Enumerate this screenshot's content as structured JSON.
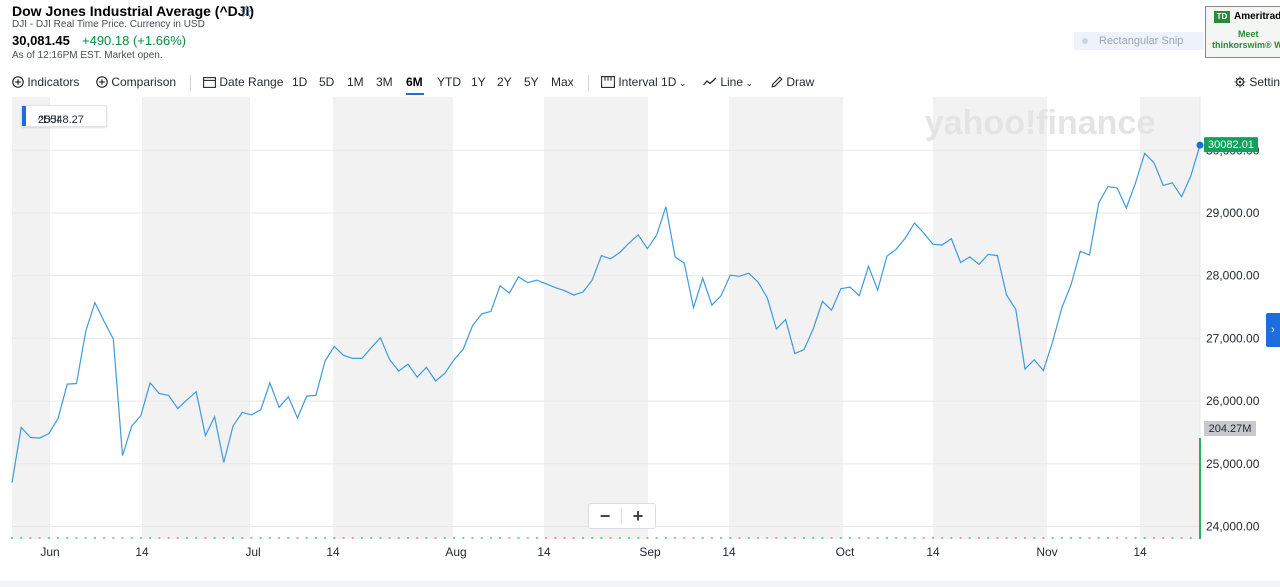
{
  "header": {
    "title": "Dow Jones Industrial Average (^DJI)",
    "subtitle": "DJI - DJI Real Time Price. Currency in USD",
    "price": "30,081.45",
    "change": "+490.18 (+1.66%)",
    "as_of": "As of 12:16PM EST. Market open.",
    "star_icon": "star-outline-icon"
  },
  "snip": {
    "label": "Rectangular Snip"
  },
  "ad": {
    "logo": "TD",
    "brand": "Ameritrade",
    "line1": "Meet",
    "line2": "thinkorswim® W"
  },
  "toolbar": {
    "indicators": "Indicators",
    "comparison": "Comparison",
    "date_range": "Date Range",
    "ranges": [
      "1D",
      "5D",
      "1M",
      "3M",
      "6M",
      "YTD",
      "1Y",
      "2Y",
      "5Y",
      "Max"
    ],
    "selected_range": "6M",
    "interval": "Interval",
    "interval_value": "1D",
    "line": "Line",
    "draw": "Draw",
    "settings": "Settings"
  },
  "tooltip": {
    "symbol": "^DJI",
    "value": "25548.27"
  },
  "zoom": {
    "minus": "−",
    "plus": "+"
  },
  "colors": {
    "line": "#3d9be0",
    "up": "#12a05c",
    "band": "#f2f2f2",
    "accent": "#1d6ce0",
    "volume_up": "#27b15e",
    "volume_down": "#e46060"
  },
  "chart_data": {
    "type": "line",
    "series": [
      {
        "name": "^DJI"
      }
    ],
    "x_labels": [
      "Jun",
      "14",
      "Jul",
      "14",
      "Aug",
      "14",
      "Sep",
      "14",
      "Oct",
      "14",
      "Nov",
      "14"
    ],
    "y_ticks": [
      "24,000.00",
      "25,000.00",
      "26,000.00",
      "27,000.00",
      "28,000.00",
      "29,000.00",
      "30,000.00"
    ],
    "ylim": [
      23800,
      30850
    ],
    "values": [
      24700,
      25580,
      25420,
      25410,
      25480,
      25720,
      26270,
      26280,
      27110,
      27570,
      27270,
      26990,
      25130,
      25600,
      25770,
      26290,
      26120,
      26090,
      25880,
      26020,
      26150,
      25450,
      25750,
      25020,
      25600,
      25820,
      25780,
      25860,
      26290,
      25900,
      26070,
      25730,
      26080,
      26090,
      26640,
      26870,
      26730,
      26680,
      26680,
      26850,
      27010,
      26660,
      26480,
      26590,
      26380,
      26540,
      26320,
      26440,
      26660,
      26830,
      27200,
      27390,
      27430,
      27840,
      27720,
      27980,
      27890,
      27930,
      27870,
      27810,
      27760,
      27690,
      27740,
      27930,
      28320,
      28270,
      28370,
      28520,
      28650,
      28430,
      28650,
      29100,
      28300,
      28200,
      27490,
      27960,
      27530,
      27680,
      28010,
      27990,
      28040,
      27900,
      27650,
      27150,
      27300,
      26760,
      26820,
      27150,
      27590,
      27450,
      27790,
      27820,
      27680,
      28150,
      27770,
      28310,
      28420,
      28600,
      28840,
      28680,
      28500,
      28490,
      28590,
      28210,
      28300,
      28180,
      28340,
      28320,
      27690,
      27460,
      26510,
      26660,
      26490,
      26950,
      27490,
      27860,
      28390,
      28330,
      29160,
      29420,
      29400,
      29080,
      29480,
      29950,
      29800,
      29440,
      29480,
      29260,
      29590,
      30082.01
    ],
    "last_value": "30082.01",
    "volume_label": "204.27M",
    "watermark": "yahoo!finance"
  }
}
